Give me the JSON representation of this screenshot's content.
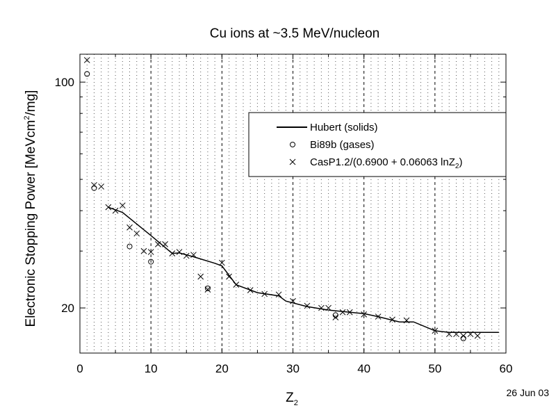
{
  "chart_data": {
    "type": "line",
    "title": "Cu ions at ~3.5 MeV/nucleon",
    "xlabel": "Z",
    "xlabel_sub": "2",
    "ylabel": "Electronic Stopping Power [MeVcm",
    "ylabel_sup": "2",
    "ylabel_tail": "/mg]",
    "date": "26 Jun 03",
    "xlim": [
      0,
      60
    ],
    "ylim": [
      14.5,
      122
    ],
    "yscale": "log",
    "x_ticks": [
      0,
      10,
      20,
      30,
      40,
      50,
      60
    ],
    "y_tick_labels": [
      20,
      100
    ],
    "y_minor_ticks": [
      30,
      40,
      50,
      60,
      70,
      80,
      90
    ],
    "grid": "vertical dotted at each integer Z",
    "legend_position": "top-right",
    "series": [
      {
        "name": "Hubert (solids)",
        "marker": "line",
        "x": [
          4,
          6,
          10,
          13,
          14,
          16,
          19,
          20,
          22,
          25,
          28,
          29,
          32,
          35,
          38,
          40,
          42,
          45,
          47,
          50,
          52,
          56,
          59
        ],
        "y": [
          41,
          39.5,
          33.5,
          29.5,
          29.6,
          28.8,
          27.5,
          27.0,
          23.6,
          22.3,
          21.8,
          21.0,
          20.2,
          19.7,
          19.4,
          19.2,
          18.8,
          18.1,
          18.1,
          17.0,
          16.8,
          16.8,
          16.8
        ]
      },
      {
        "name": "Bi89b (gases)",
        "marker": "circle",
        "x": [
          1,
          2,
          7,
          10,
          18,
          36,
          54
        ],
        "y": [
          106,
          47.0,
          31.0,
          27.8,
          23.0,
          19.0,
          16.1
        ]
      },
      {
        "name": "CasP1.2/(0.6900 + 0.06063 lnZ",
        "name_sub": "2",
        "name_tail": ")",
        "marker": "x",
        "x": [
          1,
          2,
          3,
          4,
          5,
          6,
          7,
          8,
          9,
          10,
          11,
          12,
          13,
          14,
          15,
          16,
          17,
          18,
          20,
          21,
          22,
          24,
          26,
          28,
          30,
          32,
          34,
          35,
          36,
          37,
          38,
          40,
          42,
          44,
          46,
          50,
          52,
          53,
          54,
          55,
          56
        ],
        "y": [
          117,
          48.0,
          47.5,
          41.0,
          40.0,
          41.5,
          35.5,
          34.0,
          30.0,
          29.8,
          31.5,
          31.5,
          29.5,
          29.8,
          29.0,
          29.2,
          25.0,
          22.8,
          27.6,
          25.0,
          23.6,
          22.7,
          22.1,
          22.0,
          21.0,
          20.3,
          20.0,
          20.0,
          18.7,
          19.4,
          19.4,
          19.1,
          18.8,
          18.4,
          18.3,
          17.0,
          16.6,
          16.6,
          16.4,
          16.6,
          16.4
        ]
      }
    ]
  }
}
